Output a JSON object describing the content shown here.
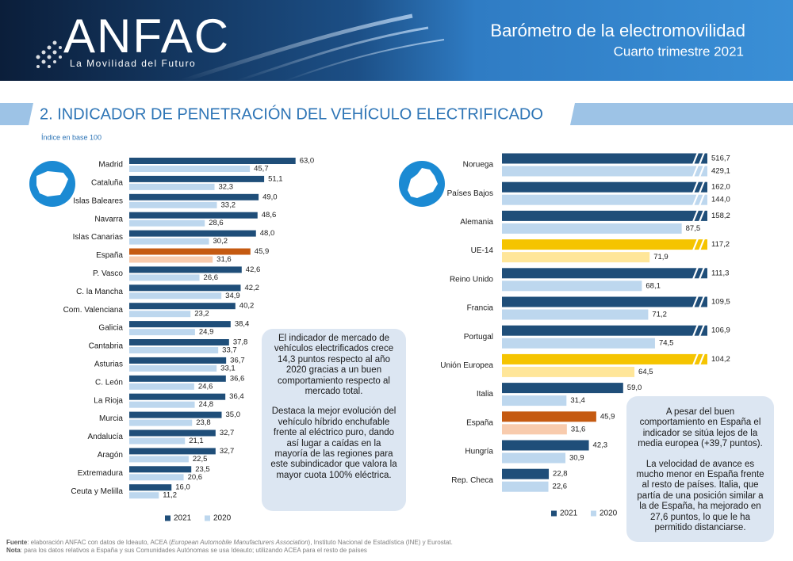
{
  "header": {
    "logo": "ANFAC",
    "tagline": "La Movilidad del Futuro",
    "title": "Barómetro de la electromovilidad",
    "subtitle": "Cuarto trimestre 2021"
  },
  "section_title": "2. INDICADOR DE PENETRACIÓN DEL VEHÍCULO ELECTRIFICADO",
  "chart_data": [
    {
      "type": "hbar",
      "subtitle": "Índice en base 100",
      "categories": [
        "Madrid",
        "Cataluña",
        "Islas Baleares",
        "Navarra",
        "Islas Canarias",
        "España",
        "P. Vasco",
        "C. la Mancha",
        "Com. Valenciana",
        "Galicia",
        "Cantabria",
        "Asturias",
        "C. León",
        "La Rioja",
        "Murcia",
        "Andalucía",
        "Aragón",
        "Extremadura",
        "Ceuta y Melilla"
      ],
      "xlim": [
        0,
        70
      ],
      "axis_break": false,
      "series": [
        {
          "name": "2021",
          "color": "#1f4e79",
          "colors": [
            "#1f4e79",
            "#1f4e79",
            "#1f4e79",
            "#1f4e79",
            "#1f4e79",
            "#c55a11",
            "#1f4e79",
            "#1f4e79",
            "#1f4e79",
            "#1f4e79",
            "#1f4e79",
            "#1f4e79",
            "#1f4e79",
            "#1f4e79",
            "#1f4e79",
            "#1f4e79",
            "#1f4e79",
            "#1f4e79",
            "#1f4e79"
          ],
          "values": [
            63.0,
            51.1,
            49.0,
            48.6,
            48.0,
            45.9,
            42.6,
            42.2,
            40.2,
            38.4,
            37.8,
            36.7,
            36.6,
            36.4,
            35.0,
            32.7,
            32.7,
            23.5,
            16.0
          ],
          "value_labels": [
            "63,0",
            "51,1",
            "49,0",
            "48,6",
            "48,0",
            "45,9",
            "42,6",
            "42,2",
            "40,2",
            "38,4",
            "37,8",
            "36,7",
            "36,6",
            "36,4",
            "35,0",
            "32,7",
            "32,7",
            "23,5",
            "16,0"
          ]
        },
        {
          "name": "2020",
          "color": "#bdd7ee",
          "colors": [
            "#bdd7ee",
            "#bdd7ee",
            "#bdd7ee",
            "#bdd7ee",
            "#bdd7ee",
            "#f8cbad",
            "#bdd7ee",
            "#bdd7ee",
            "#bdd7ee",
            "#bdd7ee",
            "#bdd7ee",
            "#bdd7ee",
            "#bdd7ee",
            "#bdd7ee",
            "#bdd7ee",
            "#bdd7ee",
            "#bdd7ee",
            "#bdd7ee",
            "#bdd7ee"
          ],
          "values": [
            45.7,
            32.3,
            33.2,
            28.6,
            30.2,
            31.6,
            26.6,
            34.9,
            23.2,
            24.9,
            33.7,
            33.1,
            24.6,
            24.8,
            23.8,
            21.1,
            22.5,
            20.6,
            11.2
          ],
          "value_labels": [
            "45,7",
            "32,3",
            "33,2",
            "28,6",
            "30,2",
            "31,6",
            "26,6",
            "34,9",
            "23,2",
            "24,9",
            "33,7",
            "33,1",
            "24,6",
            "24,8",
            "23,8",
            "21,1",
            "22,5",
            "20,6",
            "11,2"
          ]
        }
      ],
      "note": [
        "El indicador de mercado de vehículos electrificados crece 14,3 puntos respecto al año 2020 gracias a un buen comportamiento respecto al mercado total.",
        "Destaca la mejor evolución del vehículo híbrido enchufable frente al eléctrico puro, dando así lugar a caídas en la mayoría de las regiones para este subindicador que valora la mayor cuota 100% eléctrica."
      ]
    },
    {
      "type": "hbar",
      "categories": [
        "Noruega",
        "Países Bajos",
        "Alemania",
        "UE-14",
        "Reino Unido",
        "Francia",
        "Portugal",
        "Unión Europea",
        "Italia",
        "España",
        "Hungría",
        "Rep. Checa"
      ],
      "xlim": [
        0,
        100
      ],
      "axis_break": true,
      "series": [
        {
          "name": "2021",
          "color": "#1f4e79",
          "colors": [
            "#1f4e79",
            "#1f4e79",
            "#1f4e79",
            "#f5c400",
            "#1f4e79",
            "#1f4e79",
            "#1f4e79",
            "#f5c400",
            "#1f4e79",
            "#c55a11",
            "#1f4e79",
            "#1f4e79"
          ],
          "values": [
            516.7,
            162.0,
            158.2,
            117.2,
            111.3,
            109.5,
            106.9,
            104.2,
            59.0,
            45.9,
            42.3,
            22.8
          ],
          "value_labels": [
            "516,7",
            "162,0",
            "158,2",
            "117,2",
            "111,3",
            "109,5",
            "106,9",
            "104,2",
            "59,0",
            "45,9",
            "42,3",
            "22,8"
          ]
        },
        {
          "name": "2020",
          "color": "#bdd7ee",
          "colors": [
            "#bdd7ee",
            "#bdd7ee",
            "#bdd7ee",
            "#ffe699",
            "#bdd7ee",
            "#bdd7ee",
            "#bdd7ee",
            "#ffe699",
            "#bdd7ee",
            "#f8cbad",
            "#bdd7ee",
            "#bdd7ee"
          ],
          "values": [
            429.1,
            144.0,
            87.5,
            71.9,
            68.1,
            71.2,
            74.5,
            64.5,
            31.4,
            31.6,
            30.9,
            22.6
          ],
          "value_labels": [
            "429,1",
            "144,0",
            "87,5",
            "71,9",
            "68,1",
            "71,2",
            "74,5",
            "64,5",
            "31,4",
            "31,6",
            "30,9",
            "22,6"
          ]
        }
      ],
      "note": [
        "A pesar del buen comportamiento en España el indicador se sitúa lejos de la media europea (+39,7 puntos).",
        "La velocidad de avance es mucho menor en España frente al resto de países. Italia, que partía de una posición similar a la de España, ha mejorado en 27,6 puntos, lo que le ha permitido distanciarse."
      ]
    }
  ],
  "footer": {
    "source": {
      "label": "Fuente",
      "text": ": elaboración ANFAC con datos de Ideauto, ACEA (",
      "italic": "European Automobile Manufacturers Association",
      "text_after": "), Instituto Nacional de Estadística (INE) y Eurostat."
    },
    "note": {
      "label": "Nota",
      "text": ": para los datos relativos a España y sus Comunidades Autónomas se usa Ideauto; utilizando ACEA para el resto de países"
    }
  }
}
